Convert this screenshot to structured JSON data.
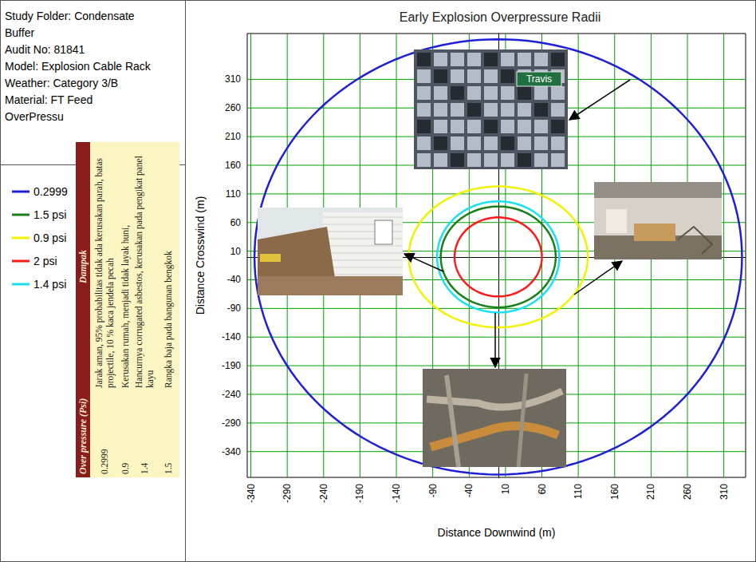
{
  "chart_data": {
    "type": "contour",
    "title": "Early Explosion Overpressure Radii",
    "x_label": "Distance Downwind (m)",
    "y_label": "Distance Crosswind (m)",
    "xlim": [
      -345,
      340
    ],
    "xticks": [
      -340,
      -290,
      -240,
      -190,
      -140,
      -90,
      -40,
      10,
      60,
      110,
      160,
      210,
      260,
      310
    ],
    "ylim": [
      -385,
      390
    ],
    "yticks": [
      -340,
      -290,
      -240,
      -190,
      -140,
      -90,
      -40,
      10,
      60,
      110,
      160,
      210,
      260,
      310
    ],
    "grid": true,
    "legend": "left",
    "series": [
      {
        "name": "0.2999",
        "color": "#1f1fd6",
        "center": [
          0,
          0
        ],
        "radius_downwind": 335,
        "radius_crosswind": 380
      },
      {
        "name": "1.5 psi",
        "color": "#1a7f1a",
        "center": [
          0,
          0
        ],
        "radius_downwind": 79,
        "radius_crosswind": 88
      },
      {
        "name": "0.9 psi",
        "color": "#f2f200",
        "center": [
          0,
          0
        ],
        "radius_downwind": 123,
        "radius_crosswind": 123
      },
      {
        "name": "2 psi",
        "color": "#ff1a1a",
        "center": [
          0,
          0
        ],
        "radius_downwind": 60,
        "radius_crosswind": 69
      },
      {
        "name": "1.4 psi",
        "color": "#19e0f5",
        "center": [
          0,
          0
        ],
        "radius_downwind": 84,
        "radius_crosswind": 97
      }
    ]
  },
  "info_panel": {
    "lines": [
      "Study Folder: Condensate Buffer",
      "Audit No: 81841",
      "Model: Explosion Cable Rack",
      "Weather: Category 3/B",
      "Material: FT Feed",
      "OverPressu"
    ]
  },
  "impact_table": {
    "header": [
      "Over pressure (Psi)",
      "Dampak"
    ],
    "rows": [
      [
        "0.2999",
        "Jarak aman, 95% probabilitas tidak ada kerusakan parah, batas projectile, 10 % kaca jendela pecah"
      ],
      [
        "0.9",
        "Kerusakan rumah, menjadi tidak layak huni,"
      ],
      [
        "1.4",
        "Hancurnya corrugated asbestos, kerusakan pada pengikat panel kayu"
      ],
      [
        "1.5",
        "Rangka baja pada bangunan bengkok"
      ]
    ]
  },
  "photo_texts": [
    "Travis"
  ]
}
